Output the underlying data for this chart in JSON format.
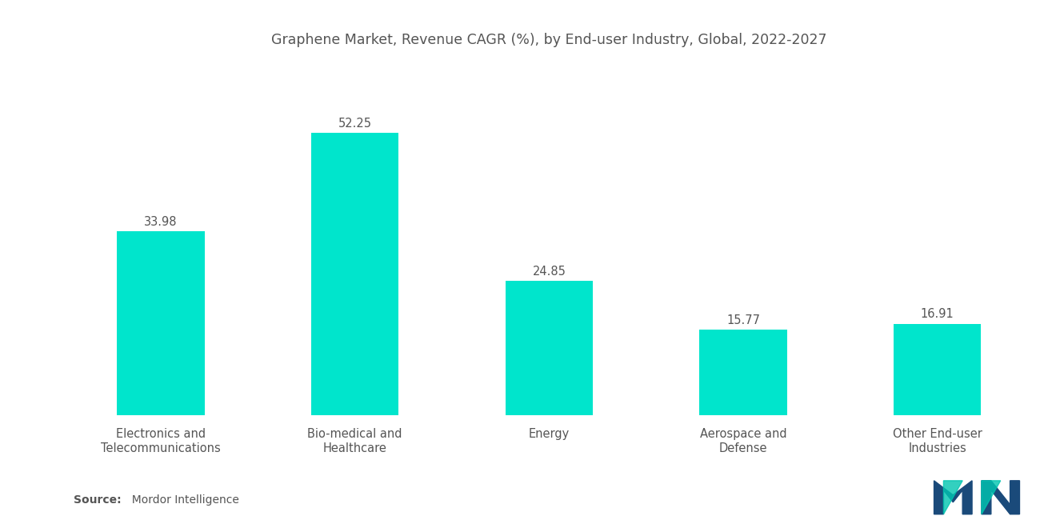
{
  "title": "Graphene Market, Revenue CAGR (%), by End-user Industry, Global, 2022-2027",
  "categories": [
    "Electronics and\nTelecommunications",
    "Bio-medical and\nHealthcare",
    "Energy",
    "Aerospace and\nDefense",
    "Other End-user\nIndustries"
  ],
  "values": [
    33.98,
    52.25,
    24.85,
    15.77,
    16.91
  ],
  "bar_color": "#00E5CC",
  "label_color": "#555555",
  "title_color": "#555555",
  "background_color": "#ffffff",
  "source_bold": "Source:",
  "source_normal": "  Mordor Intelligence",
  "title_fontsize": 12.5,
  "label_fontsize": 10.5,
  "value_fontsize": 10.5,
  "source_fontsize": 10,
  "bar_width": 0.45,
  "ylim": [
    0,
    65
  ]
}
